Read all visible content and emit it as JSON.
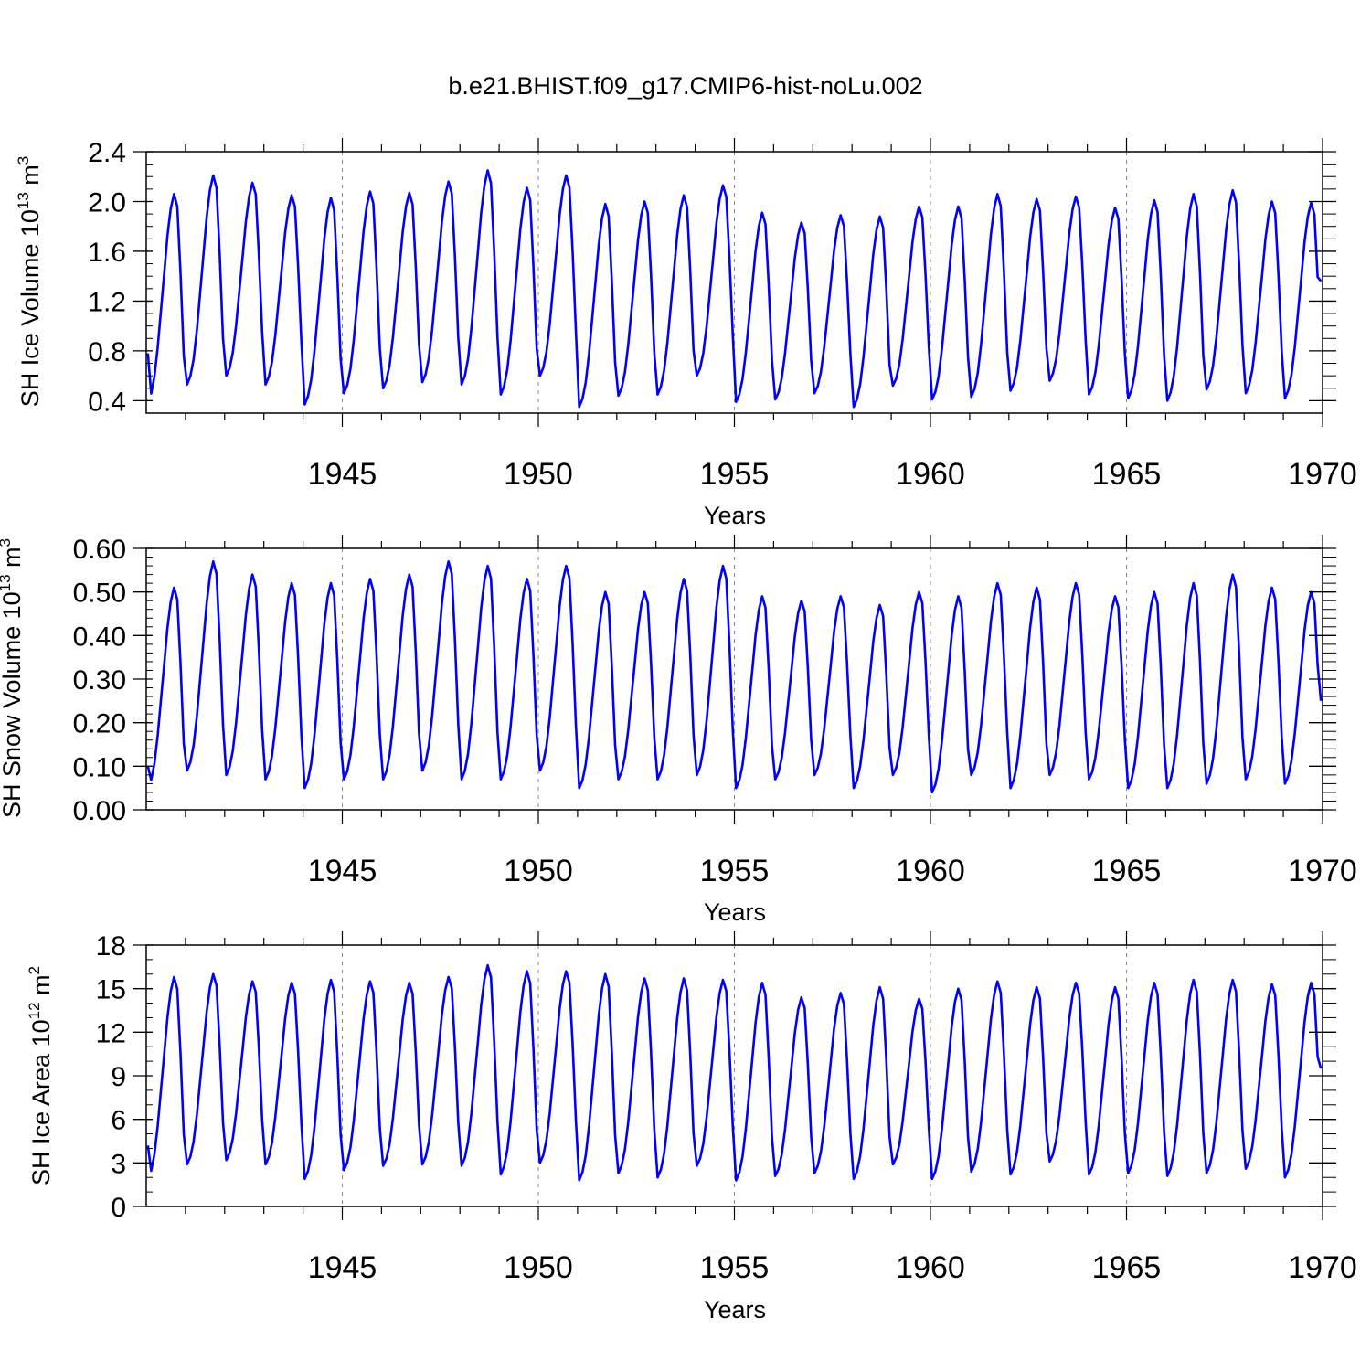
{
  "colors": {
    "line": "#0000ff",
    "axis": "#000000",
    "grid": "#888888"
  },
  "chart_data": {
    "title": "b.e21.BHIST.f09_g17.CMIP6-hist-noLu.002",
    "type": "line",
    "x_start": 1940.0417,
    "x_step": 0.0833333,
    "panels": [
      {
        "type": "line",
        "ylabel": {
          "prefix": "SH Ice Volume 10",
          "exponent": "13",
          "unit": " m",
          "unit_exponent": "3"
        },
        "xlabel": "Years",
        "xlim": [
          1940,
          1970
        ],
        "xticks": [
          "1945",
          "1950",
          "1955",
          "1960",
          "1965",
          "1970"
        ],
        "xtick_values": [
          1945,
          1950,
          1955,
          1960,
          1965,
          1970
        ],
        "ylim": [
          0.3,
          2.4
        ],
        "yticks": [
          "0.4",
          "0.8",
          "1.2",
          "1.6",
          "2.0",
          "2.4"
        ],
        "ytick_values": [
          0.4,
          0.8,
          1.2,
          1.6,
          2.0,
          2.4
        ],
        "yminor_step": 0.1,
        "series": [
          {
            "name": "SH Ice Volume",
            "minima": [
              0.39,
              0.53,
              0.6,
              0.53,
              0.37,
              0.46,
              0.5,
              0.55,
              0.53,
              0.45,
              0.6,
              0.35,
              0.44,
              0.45,
              0.6,
              0.39,
              0.41,
              0.46,
              0.35,
              0.52,
              0.41,
              0.43,
              0.48,
              0.56,
              0.45,
              0.42,
              0.4,
              0.49,
              0.46,
              0.42
            ],
            "maxima": [
              2.06,
              2.21,
              2.15,
              2.05,
              2.03,
              2.08,
              2.07,
              2.16,
              2.25,
              2.11,
              2.21,
              1.98,
              2.0,
              2.05,
              2.13,
              1.91,
              1.83,
              1.89,
              1.88,
              1.96,
              1.96,
              2.06,
              2.02,
              2.04,
              1.95,
              2.01,
              2.06,
              2.09,
              2.0,
              1.99
            ],
            "start": 0.78,
            "end": 1.36
          }
        ]
      },
      {
        "type": "line",
        "ylabel": {
          "prefix": "SH Snow Volume 10",
          "exponent": "13",
          "unit": " m",
          "unit_exponent": "3"
        },
        "xlabel": "Years",
        "xlim": [
          1940,
          1970
        ],
        "xticks": [
          "1945",
          "1950",
          "1955",
          "1960",
          "1965",
          "1970"
        ],
        "xtick_values": [
          1945,
          1950,
          1955,
          1960,
          1965,
          1970
        ],
        "ylim": [
          0.0,
          0.6
        ],
        "yticks": [
          "0.00",
          "0.10",
          "0.20",
          "0.30",
          "0.40",
          "0.50",
          "0.60"
        ],
        "ytick_values": [
          0.0,
          0.1,
          0.2,
          0.3,
          0.4,
          0.5,
          0.6
        ],
        "yminor_step": 0.02,
        "series": [
          {
            "name": "SH Snow Volume",
            "minima": [
              0.05,
              0.09,
              0.08,
              0.07,
              0.05,
              0.07,
              0.07,
              0.09,
              0.07,
              0.07,
              0.09,
              0.05,
              0.07,
              0.07,
              0.08,
              0.05,
              0.07,
              0.08,
              0.05,
              0.08,
              0.04,
              0.08,
              0.05,
              0.08,
              0.07,
              0.05,
              0.05,
              0.06,
              0.07,
              0.06
            ],
            "maxima": [
              0.51,
              0.57,
              0.54,
              0.52,
              0.52,
              0.53,
              0.54,
              0.57,
              0.56,
              0.53,
              0.56,
              0.5,
              0.5,
              0.53,
              0.56,
              0.49,
              0.48,
              0.49,
              0.47,
              0.5,
              0.49,
              0.52,
              0.51,
              0.52,
              0.49,
              0.5,
              0.52,
              0.54,
              0.51,
              0.5
            ],
            "start": 0.1,
            "end": 0.25
          }
        ]
      },
      {
        "type": "line",
        "ylabel": {
          "prefix": "SH Ice Area 10",
          "exponent": "12",
          "unit": " m",
          "unit_exponent": "2"
        },
        "xlabel": "Years",
        "xlim": [
          1940,
          1970
        ],
        "xticks": [
          "1945",
          "1950",
          "1955",
          "1960",
          "1965",
          "1970"
        ],
        "xtick_values": [
          1945,
          1950,
          1955,
          1960,
          1965,
          1970
        ],
        "ylim": [
          0,
          18
        ],
        "yticks": [
          "0",
          "3",
          "6",
          "9",
          "12",
          "15",
          "18"
        ],
        "ytick_values": [
          0,
          3,
          6,
          9,
          12,
          15,
          18
        ],
        "yminor_step": 1,
        "series": [
          {
            "name": "SH Ice Area",
            "minima": [
              1.9,
              2.9,
              3.2,
              2.9,
              1.9,
              2.5,
              2.8,
              2.9,
              2.8,
              2.2,
              3.0,
              1.8,
              2.3,
              2.0,
              2.8,
              1.8,
              2.1,
              2.3,
              1.9,
              2.9,
              1.9,
              2.4,
              2.2,
              3.1,
              2.2,
              2.3,
              2.1,
              2.3,
              2.6,
              2.0
            ],
            "maxima": [
              15.8,
              16.0,
              15.5,
              15.4,
              15.6,
              15.5,
              15.4,
              15.8,
              16.6,
              16.2,
              16.2,
              16.0,
              15.7,
              15.7,
              15.6,
              15.4,
              14.4,
              14.7,
              15.1,
              14.3,
              15.0,
              15.5,
              15.1,
              15.4,
              15.1,
              15.4,
              15.6,
              15.6,
              15.3,
              15.4
            ],
            "start": 4.2,
            "end": 9.5
          }
        ]
      }
    ]
  }
}
